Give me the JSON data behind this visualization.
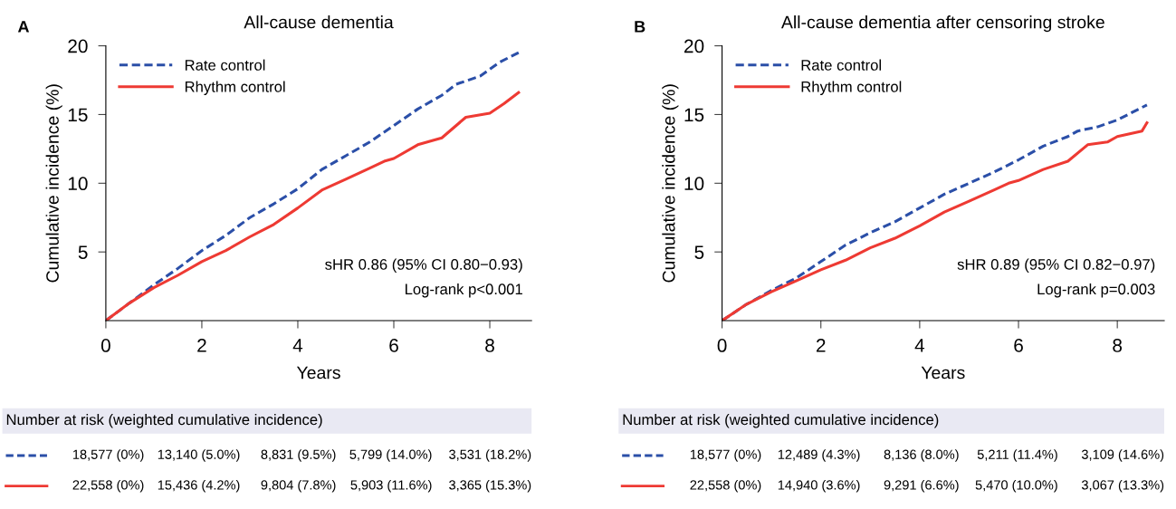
{
  "chart_data": [
    {
      "type": "line",
      "title": "All-cause dementia",
      "xlabel": "Years",
      "ylabel": "Cumulative incidence (%)",
      "xlim": [
        0,
        8.87
      ],
      "xticks": [
        0,
        2,
        4,
        6,
        8
      ],
      "ylim": [
        0,
        20
      ],
      "yticks": [
        5,
        10,
        15,
        20
      ],
      "grid": false,
      "legend": "top left",
      "marker": "none",
      "series": [
        {
          "name": "Rate control",
          "color": "#2b4fa8",
          "line_style": "dashed",
          "x": [
            0,
            0.5,
            1,
            1.5,
            2,
            2.5,
            3,
            3.5,
            4,
            4.5,
            5,
            5.5,
            6,
            6.5,
            7,
            7.3,
            7.8,
            8.2,
            8.6
          ],
          "values": [
            0,
            1.3,
            2.6,
            3.8,
            5.1,
            6.2,
            7.5,
            8.5,
            9.6,
            11.0,
            12.0,
            13.0,
            14.2,
            15.4,
            16.4,
            17.2,
            17.8,
            18.8,
            19.5
          ]
        },
        {
          "name": "Rhythm control",
          "color": "#ee3a33",
          "line_style": "solid",
          "x": [
            0,
            0.5,
            1,
            1.5,
            2,
            2.5,
            3,
            3.5,
            4,
            4.5,
            5,
            5.5,
            5.8,
            6,
            6.5,
            7,
            7.5,
            8,
            8.3,
            8.6
          ],
          "values": [
            0,
            1.3,
            2.4,
            3.3,
            4.3,
            5.1,
            6.1,
            7.0,
            8.2,
            9.5,
            10.3,
            11.1,
            11.6,
            11.8,
            12.8,
            13.3,
            14.8,
            15.1,
            15.8,
            16.6
          ]
        }
      ],
      "annotations": [
        "A",
        "sHR 0.86 (95% CI 0.80−0.93)",
        "Log-rank p<0.001",
        "Number at risk (weighted cumulative incidence)",
        "18,577 (0%)",
        "13,140 (5.0%)",
        "8,831 (9.5%)",
        "5,799 (14.0%)",
        "3,531 (18.2%)",
        "22,558 (0%)",
        "15,436 (4.2%)",
        "9,804 (7.8%)",
        "5,903 (11.6%)",
        "3,365 (15.3%)"
      ]
    },
    {
      "type": "line",
      "title": "All-cause dementia after censoring stroke",
      "xlabel": "Years",
      "ylabel": "Cumulative incidence (%)",
      "xlim": [
        0,
        8.95
      ],
      "xticks": [
        0,
        2,
        4,
        6,
        8
      ],
      "ylim": [
        0,
        20
      ],
      "yticks": [
        5,
        10,
        15,
        20
      ],
      "grid": false,
      "legend": "top left",
      "marker": "none",
      "series": [
        {
          "name": "Rate control",
          "color": "#2b4fa8",
          "line_style": "dashed",
          "x": [
            0,
            0.5,
            1,
            1.5,
            2,
            2.5,
            3,
            3.5,
            4,
            4.5,
            5,
            5.5,
            6,
            6.5,
            7,
            7.2,
            7.6,
            8,
            8.6
          ],
          "values": [
            0,
            1.2,
            2.2,
            3.1,
            4.3,
            5.5,
            6.4,
            7.2,
            8.2,
            9.2,
            10.0,
            10.8,
            11.7,
            12.7,
            13.4,
            13.8,
            14.1,
            14.6,
            15.7
          ]
        },
        {
          "name": "Rhythm control",
          "color": "#ee3a33",
          "line_style": "solid",
          "x": [
            0,
            0.5,
            1,
            1.5,
            2,
            2.5,
            3,
            3.5,
            4,
            4.5,
            5,
            5.5,
            5.8,
            6,
            6.5,
            7,
            7.4,
            7.8,
            8,
            8.5,
            8.6
          ],
          "values": [
            0,
            1.2,
            2.1,
            2.9,
            3.7,
            4.4,
            5.3,
            6.0,
            6.9,
            7.9,
            8.7,
            9.5,
            10.0,
            10.2,
            11.0,
            11.6,
            12.8,
            13.0,
            13.4,
            13.8,
            14.4
          ]
        }
      ],
      "annotations": [
        "B",
        "sHR 0.89 (95% CI 0.82−0.97)",
        "Log-rank p=0.003",
        "Number at risk (weighted cumulative incidence)",
        "18,577 (0%)",
        "12,489 (4.3%)",
        "8,136 (8.0%)",
        "5,211 (11.4%)",
        "3,109 (14.6%)",
        "22,558 (0%)",
        "14,940 (3.6%)",
        "9,291 (6.6%)",
        "5,470 (10.0%)",
        "3,067 (13.3%)"
      ]
    }
  ]
}
